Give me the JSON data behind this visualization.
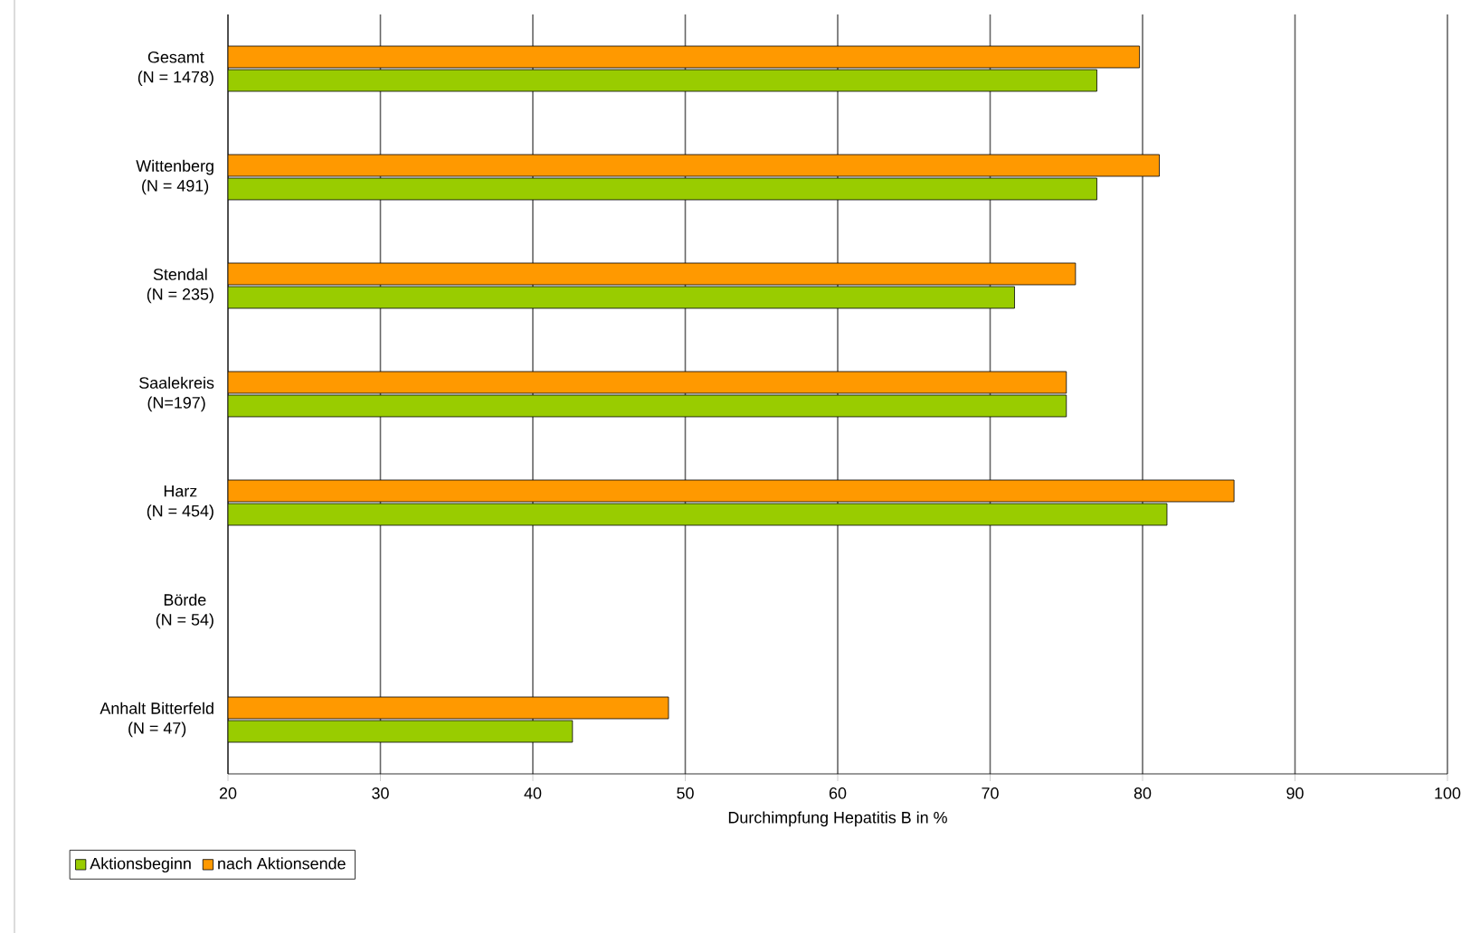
{
  "chart_data": {
    "type": "bar",
    "orientation": "horizontal",
    "categories": [
      "Gesamt\n(N = 1478)",
      "Wittenberg\n(N = 491)",
      "Stendal\n(N = 235)",
      "Saalekreis\n(N=197)",
      "Harz\n(N = 454)",
      "Börde\n(N = 54)",
      "Anhalt Bitterfeld\n(N = 47)"
    ],
    "series": [
      {
        "name": "Aktionsbeginn",
        "color": "#99cc00",
        "values": [
          77.0,
          77.0,
          71.6,
          75.0,
          81.6,
          null,
          42.6
        ]
      },
      {
        "name": "nach Aktionsende",
        "color": "#ff9900",
        "values": [
          79.8,
          81.1,
          75.6,
          75.0,
          86.0,
          null,
          48.9
        ]
      }
    ],
    "xlabel": "Durchimpfung Hepatitis B in %",
    "xlim": [
      20,
      100
    ],
    "xticks": [
      20,
      30,
      40,
      50,
      60,
      70,
      80,
      90,
      100
    ],
    "grid": "x",
    "legend": "bottom left"
  }
}
